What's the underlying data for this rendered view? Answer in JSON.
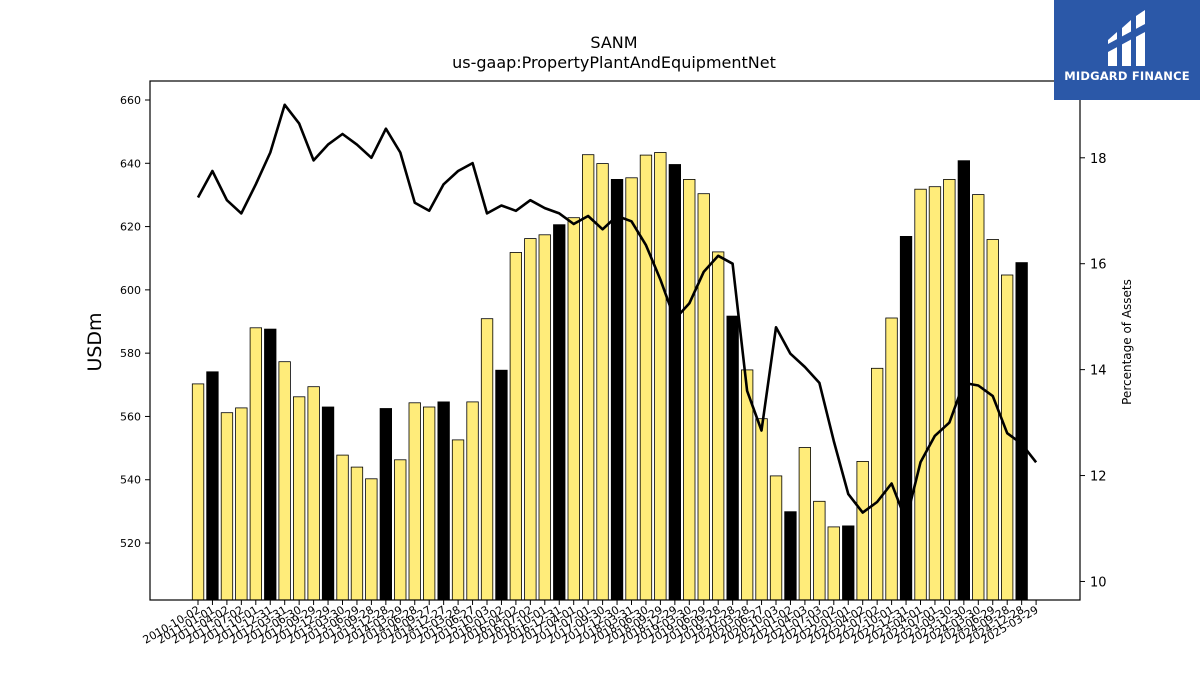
{
  "brand": {
    "name": "MIDGARD FINANCE",
    "bg_color": "#2b58a8"
  },
  "chart_data": {
    "type": "bar+line",
    "title": "SANM",
    "subtitle": "us-gaap:PropertyPlantAndEquipmentNet",
    "ylabel": "USDm",
    "y2label": "Percentage of Assets",
    "ylim": [
      502,
      666
    ],
    "y2lim": [
      9.65,
      19.45
    ],
    "yticks": [
      520,
      540,
      560,
      580,
      600,
      620,
      640,
      660
    ],
    "y2ticks": [
      10,
      12,
      14,
      16,
      18
    ],
    "colors": {
      "bar": "#ffec7a",
      "bar_q4": "#000000",
      "line": "#000000"
    },
    "categories": [
      "2010-10-02",
      "2011-01-01",
      "2011-04-02",
      "2011-07-02",
      "2011-10-01",
      "2011-12-31",
      "2012-03-31",
      "2012-06-30",
      "2012-09-29",
      "2012-12-29",
      "2013-03-30",
      "2013-06-29",
      "2013-09-28",
      "2013-12-28",
      "2014-03-29",
      "2014-06-28",
      "2014-09-27",
      "2014-12-27",
      "2015-03-28",
      "2015-06-27",
      "2015-10-03",
      "2016-01-02",
      "2016-04-02",
      "2016-07-02",
      "2016-10-01",
      "2016-12-31",
      "2017-04-01",
      "2017-07-01",
      "2017-09-30",
      "2017-12-30",
      "2018-03-31",
      "2018-06-30",
      "2018-09-29",
      "2018-12-29",
      "2019-03-30",
      "2019-06-29",
      "2019-09-28",
      "2019-12-28",
      "2020-03-28",
      "2020-06-27",
      "2020-10-03",
      "2021-01-02",
      "2021-04-03",
      "2021-07-03",
      "2021-10-02",
      "2022-01-01",
      "2022-04-02",
      "2022-07-02",
      "2022-10-01",
      "2022-12-31",
      "2023-04-01",
      "2023-07-01",
      "2023-09-30",
      "2023-12-30",
      "2024-03-30",
      "2024-06-29",
      "2024-09-28",
      "2024-12-28",
      "2025-03-29"
    ],
    "highlight": [
      false,
      true,
      false,
      false,
      false,
      true,
      false,
      false,
      false,
      true,
      false,
      false,
      false,
      true,
      false,
      false,
      false,
      true,
      false,
      false,
      false,
      true,
      false,
      false,
      false,
      true,
      false,
      false,
      false,
      true,
      false,
      false,
      false,
      true,
      false,
      false,
      false,
      true,
      false,
      false,
      false,
      true,
      false,
      false,
      false,
      true,
      false,
      false,
      false,
      true,
      false,
      false,
      false,
      true,
      false,
      false,
      false,
      true,
      false
    ],
    "series": [
      {
        "name": "USDm",
        "kind": "bar",
        "axis": "left",
        "values": [
          570.3,
          574.1,
          561.2,
          562.7,
          588.0,
          587.6,
          577.3,
          566.2,
          569.4,
          563.0,
          547.8,
          544.0,
          540.3,
          562.5,
          546.3,
          564.3,
          563.0,
          564.6,
          552.6,
          564.6,
          590.9,
          574.6,
          611.8,
          616.2,
          617.4,
          620.6,
          622.8,
          642.7,
          639.9,
          634.9,
          635.4,
          642.6,
          643.4,
          639.6,
          634.9,
          630.4,
          612.0,
          591.7,
          574.7,
          559.3,
          541.2,
          529.9,
          550.2,
          533.2,
          525.1,
          525.4,
          545.8,
          575.2,
          591.1,
          616.9,
          631.8,
          632.6,
          634.9,
          640.8,
          630.1,
          615.9,
          604.7,
          608.6,
          null
        ]
      },
      {
        "name": "Percentage of Assets",
        "kind": "line",
        "axis": "right",
        "values": [
          17.25,
          17.75,
          17.2,
          16.95,
          17.5,
          18.1,
          19.0,
          18.65,
          17.95,
          18.25,
          18.45,
          18.25,
          18.0,
          18.55,
          18.1,
          17.15,
          17.0,
          17.5,
          17.75,
          17.9,
          16.95,
          17.1,
          17.0,
          17.2,
          17.05,
          16.95,
          16.75,
          16.9,
          16.65,
          16.9,
          16.8,
          16.35,
          15.7,
          14.95,
          15.25,
          15.85,
          16.15,
          16.0,
          13.6,
          12.85,
          14.8,
          14.3,
          14.05,
          13.75,
          12.65,
          11.65,
          11.3,
          11.5,
          11.85,
          11.15,
          12.25,
          12.75,
          13.0,
          13.75,
          13.7,
          13.5,
          12.8,
          12.6,
          12.25
        ]
      }
    ]
  }
}
